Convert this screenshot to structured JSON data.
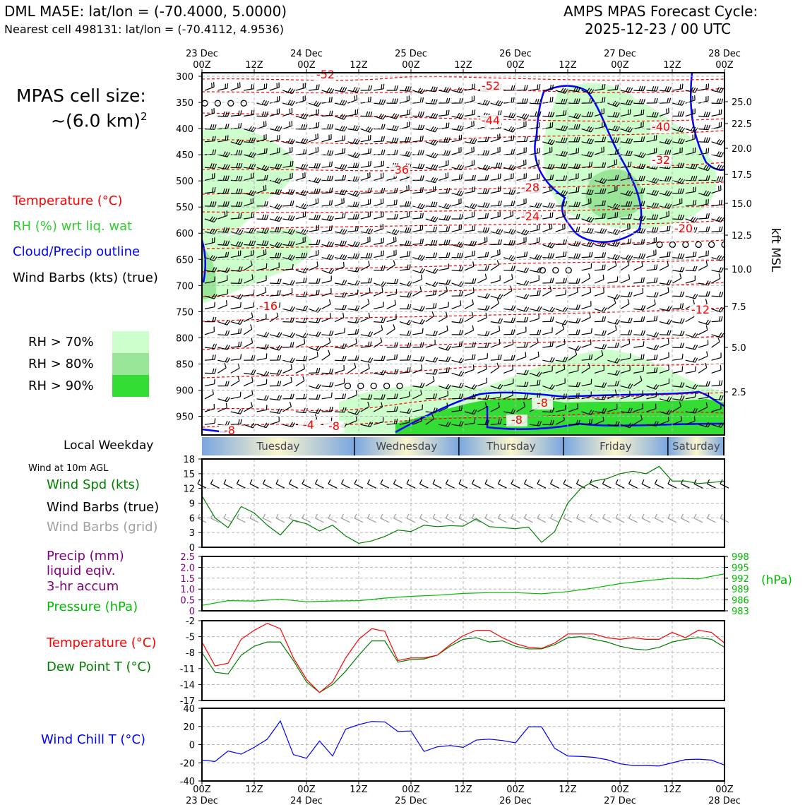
{
  "header": {
    "station_line": "DML MA5E: lat/lon = (-70.4000, 5.0000)",
    "nearest_line": "Nearest cell 498131: lat/lon = (-70.4112, 4.9536)",
    "cycle_title": "AMPS MPAS Forecast Cycle:",
    "cycle_date": "2025-12-23 / 00 UTC"
  },
  "left_panel": {
    "cell_size_label": "MPAS cell size:",
    "cell_size_value": "~(6.0 km)",
    "cell_size_exp": "2",
    "legend_temperature": "Temperature (°C)",
    "legend_rh": "RH (%) wrt liq. wat",
    "legend_cloud": "Cloud/Precip outline",
    "legend_wind": "Wind Barbs (kts) (true)",
    "rh_70": "RH > 70%",
    "rh_80": "RH > 80%",
    "rh_90": "RH > 90%",
    "local_weekday_label": "Local Weekday",
    "wind10m_label": "Wind at 10m AGL",
    "wind_spd_label": "Wind Spd (kts)",
    "wind_barbs_true_label": "Wind Barbs (true)",
    "wind_barbs_grid_label": "Wind Barbs (grid)",
    "precip_label_1": "Precip (mm)",
    "precip_label_2": "liquid eqiv.",
    "precip_label_3": "3-hr accum",
    "pressure_label": "Pressure (hPa)",
    "temp_label": "Temperature (°C)",
    "dewpt_label": "Dew Point T (°C)",
    "windchill_label": "Wind Chill T (°C)"
  },
  "colors": {
    "temperature": "#ff0000",
    "rh_green": "#33cc33",
    "cloud": "#0000ff",
    "wind": "#000000",
    "wind_grid": "#a0a0a0",
    "precip": "#800080",
    "pressure": "#00bb00",
    "dewpoint": "#008000",
    "windchill": "#0000ff",
    "rh70": "#ccffcc",
    "rh80": "#99e699",
    "rh90": "#33dd33"
  },
  "chart_data": [
    {
      "type": "line",
      "name": "cross-section",
      "title": "Vertical cross-section (temperature, RH, wind barbs)",
      "ylabel_right": "kft MSL",
      "x_tick_labels_top": [
        {
          "h": 0,
          "line1": "23 Dec",
          "line2": "00Z"
        },
        {
          "h": 12,
          "line1": "",
          "line2": "12Z"
        },
        {
          "h": 24,
          "line1": "24 Dec",
          "line2": "00Z"
        },
        {
          "h": 36,
          "line1": "",
          "line2": "12Z"
        },
        {
          "h": 48,
          "line1": "25 Dec",
          "line2": "00Z"
        },
        {
          "h": 60,
          "line1": "",
          "line2": "12Z"
        },
        {
          "h": 72,
          "line1": "26 Dec",
          "line2": "00Z"
        },
        {
          "h": 84,
          "line1": "",
          "line2": "12Z"
        },
        {
          "h": 96,
          "line1": "27 Dec",
          "line2": "00Z"
        },
        {
          "h": 108,
          "line1": "",
          "line2": "12Z"
        },
        {
          "h": 120,
          "line1": "28 Dec",
          "line2": "00Z"
        }
      ],
      "pressure_levels": [
        "300",
        "350",
        "400",
        "450",
        "500",
        "550",
        "600",
        "650",
        "700",
        "750",
        "800",
        "850",
        "900",
        "950"
      ],
      "kft_ticks": [
        "25.0",
        "22.5",
        "20.0",
        "17.5",
        "15.0",
        "12.5",
        "10.0",
        "7.5",
        "5.0",
        "2.5"
      ],
      "temperature_contour_labels": [
        "-52",
        "-52",
        "-44",
        "-40",
        "-36",
        "-32",
        "-28",
        "-24",
        "-20",
        "-16",
        "-12",
        "-8",
        "-8",
        "-8",
        "-4",
        "-8"
      ]
    },
    {
      "type": "bar",
      "name": "local-weekday",
      "categories": [
        "Tuesday",
        "Wednesday",
        "Thursday",
        "Friday",
        "Saturday"
      ]
    },
    {
      "type": "line",
      "name": "wind-speed",
      "ylim": [
        0,
        18
      ],
      "ytick_labels": [
        "18",
        "15",
        "12",
        "9",
        "6",
        "3",
        "0"
      ],
      "x_hours": [
        0,
        3,
        6,
        9,
        12,
        15,
        18,
        21,
        24,
        27,
        30,
        33,
        36,
        39,
        42,
        45,
        48,
        51,
        54,
        57,
        60,
        63,
        66,
        69,
        72,
        75,
        78,
        81,
        84,
        87,
        90,
        93,
        96,
        99,
        102,
        105,
        108,
        111,
        114,
        117,
        120
      ],
      "series": [
        {
          "name": "Wind Spd (kts)",
          "values": [
            10.5,
            6,
            4,
            8.3,
            7,
            4.5,
            2.5,
            5.5,
            4.8,
            3.3,
            4.5,
            2.3,
            0.8,
            1.3,
            2.2,
            3.5,
            3.2,
            4.5,
            4.2,
            4.4,
            4.3,
            5.8,
            4.2,
            4,
            3.8,
            4.1,
            1,
            3.2,
            9,
            12,
            13.5,
            14,
            15,
            15.5,
            15,
            16.5,
            13.5,
            13.5,
            13,
            13.2,
            13.5
          ]
        }
      ]
    },
    {
      "type": "line",
      "name": "precip-pressure",
      "ylim_left": [
        0,
        2.5
      ],
      "ytick_labels_left": [
        "2.5",
        "2.0",
        "1.5",
        "1.0",
        "0.5",
        "0"
      ],
      "ylim_right": [
        983,
        998
      ],
      "ytick_labels_right": [
        "998",
        "995",
        "992",
        "989",
        "986",
        "983"
      ],
      "ylabel_right": "(hPa)",
      "x_hours": [
        0,
        6,
        12,
        18,
        24,
        30,
        36,
        42,
        48,
        54,
        60,
        66,
        72,
        78,
        84,
        90,
        96,
        102,
        108,
        114,
        120
      ],
      "series": [
        {
          "name": "Pressure (hPa)",
          "values": [
            984.5,
            985.8,
            985.7,
            986.2,
            985.5,
            985.7,
            985.8,
            986.5,
            987,
            987.3,
            987.8,
            988,
            988,
            987.7,
            988.3,
            989.3,
            990.5,
            991.3,
            992,
            991.8,
            993.2
          ]
        },
        {
          "name": "Precip (mm)",
          "values": [
            0,
            0,
            0,
            0,
            0,
            0,
            0,
            0,
            0,
            0,
            0,
            0,
            0,
            0,
            0,
            0,
            0,
            0,
            0,
            0,
            0
          ]
        }
      ]
    },
    {
      "type": "line",
      "name": "temperature-dewpoint",
      "ylim": [
        -17,
        -2
      ],
      "ytick_labels": [
        "-2",
        "-5",
        "-8",
        "-11",
        "-14",
        "-17"
      ],
      "x_hours": [
        0,
        3,
        6,
        9,
        12,
        15,
        18,
        21,
        24,
        27,
        30,
        33,
        36,
        39,
        42,
        45,
        48,
        51,
        54,
        57,
        60,
        63,
        66,
        69,
        72,
        75,
        78,
        81,
        84,
        87,
        90,
        93,
        96,
        99,
        102,
        105,
        108,
        111,
        114,
        117,
        120
      ],
      "series": [
        {
          "name": "Temperature (°C)",
          "values": [
            -6,
            -10.5,
            -10,
            -5.5,
            -3.8,
            -2.5,
            -3.5,
            -9,
            -13,
            -15.5,
            -13.5,
            -9,
            -5.5,
            -3.5,
            -4,
            -9.5,
            -9,
            -9,
            -8.5,
            -6.5,
            -4.8,
            -3.8,
            -3.8,
            -5.2,
            -6.3,
            -7,
            -7.2,
            -6.2,
            -4.5,
            -4.5,
            -4.5,
            -5.2,
            -5.5,
            -5.2,
            -5.5,
            -5.5,
            -4.2,
            -5.2,
            -3.8,
            -4.2,
            -6.2
          ]
        },
        {
          "name": "Dew Point T (°C)",
          "values": [
            -8,
            -11.7,
            -12,
            -8.5,
            -6.8,
            -6,
            -6,
            -9.5,
            -13.5,
            -15.5,
            -14,
            -11.5,
            -8.5,
            -5.8,
            -5.8,
            -9.8,
            -9.3,
            -9.2,
            -8.5,
            -6.8,
            -5.5,
            -5.2,
            -6,
            -5.8,
            -6.8,
            -7.3,
            -7.3,
            -6.5,
            -5.2,
            -5,
            -5.5,
            -6,
            -6.8,
            -7.3,
            -7.5,
            -7,
            -6,
            -5.5,
            -5.2,
            -5.5,
            -7
          ]
        }
      ]
    },
    {
      "type": "line",
      "name": "wind-chill",
      "ylim": [
        -40,
        40
      ],
      "ytick_labels": [
        "40",
        "20",
        "0",
        "-20",
        "-40"
      ],
      "x_hours": [
        0,
        3,
        6,
        9,
        12,
        15,
        18,
        21,
        24,
        27,
        30,
        33,
        36,
        39,
        42,
        45,
        48,
        51,
        54,
        57,
        60,
        63,
        66,
        69,
        72,
        75,
        78,
        81,
        84,
        87,
        90,
        93,
        96,
        99,
        102,
        105,
        108,
        111,
        114,
        117,
        120
      ],
      "series": [
        {
          "name": "Wind Chill T (°C)",
          "values": [
            -17,
            -18.5,
            -7,
            -10.5,
            -3,
            6,
            26,
            -11,
            -15,
            4,
            -12.5,
            17,
            22,
            25.5,
            25,
            14.5,
            15,
            -7.5,
            -2.5,
            -1,
            -3,
            5,
            6,
            4.5,
            2,
            19.5,
            19.5,
            -4,
            -12.5,
            -13,
            -14,
            -16.5,
            -21,
            -23,
            -23,
            -23.5,
            -20,
            -16.5,
            -16,
            -17,
            -22.5
          ]
        }
      ]
    }
  ],
  "bottom_axis": [
    {
      "line1": "00Z",
      "line2": "23 Dec"
    },
    {
      "line1": "12Z",
      "line2": ""
    },
    {
      "line1": "00Z",
      "line2": "24 Dec"
    },
    {
      "line1": "12Z",
      "line2": ""
    },
    {
      "line1": "00Z",
      "line2": "25 Dec"
    },
    {
      "line1": "12Z",
      "line2": ""
    },
    {
      "line1": "00Z",
      "line2": "26 Dec"
    },
    {
      "line1": "12Z",
      "line2": ""
    },
    {
      "line1": "00Z",
      "line2": "27 Dec"
    },
    {
      "line1": "12Z",
      "line2": ""
    },
    {
      "line1": "00Z",
      "line2": "28 Dec"
    }
  ]
}
